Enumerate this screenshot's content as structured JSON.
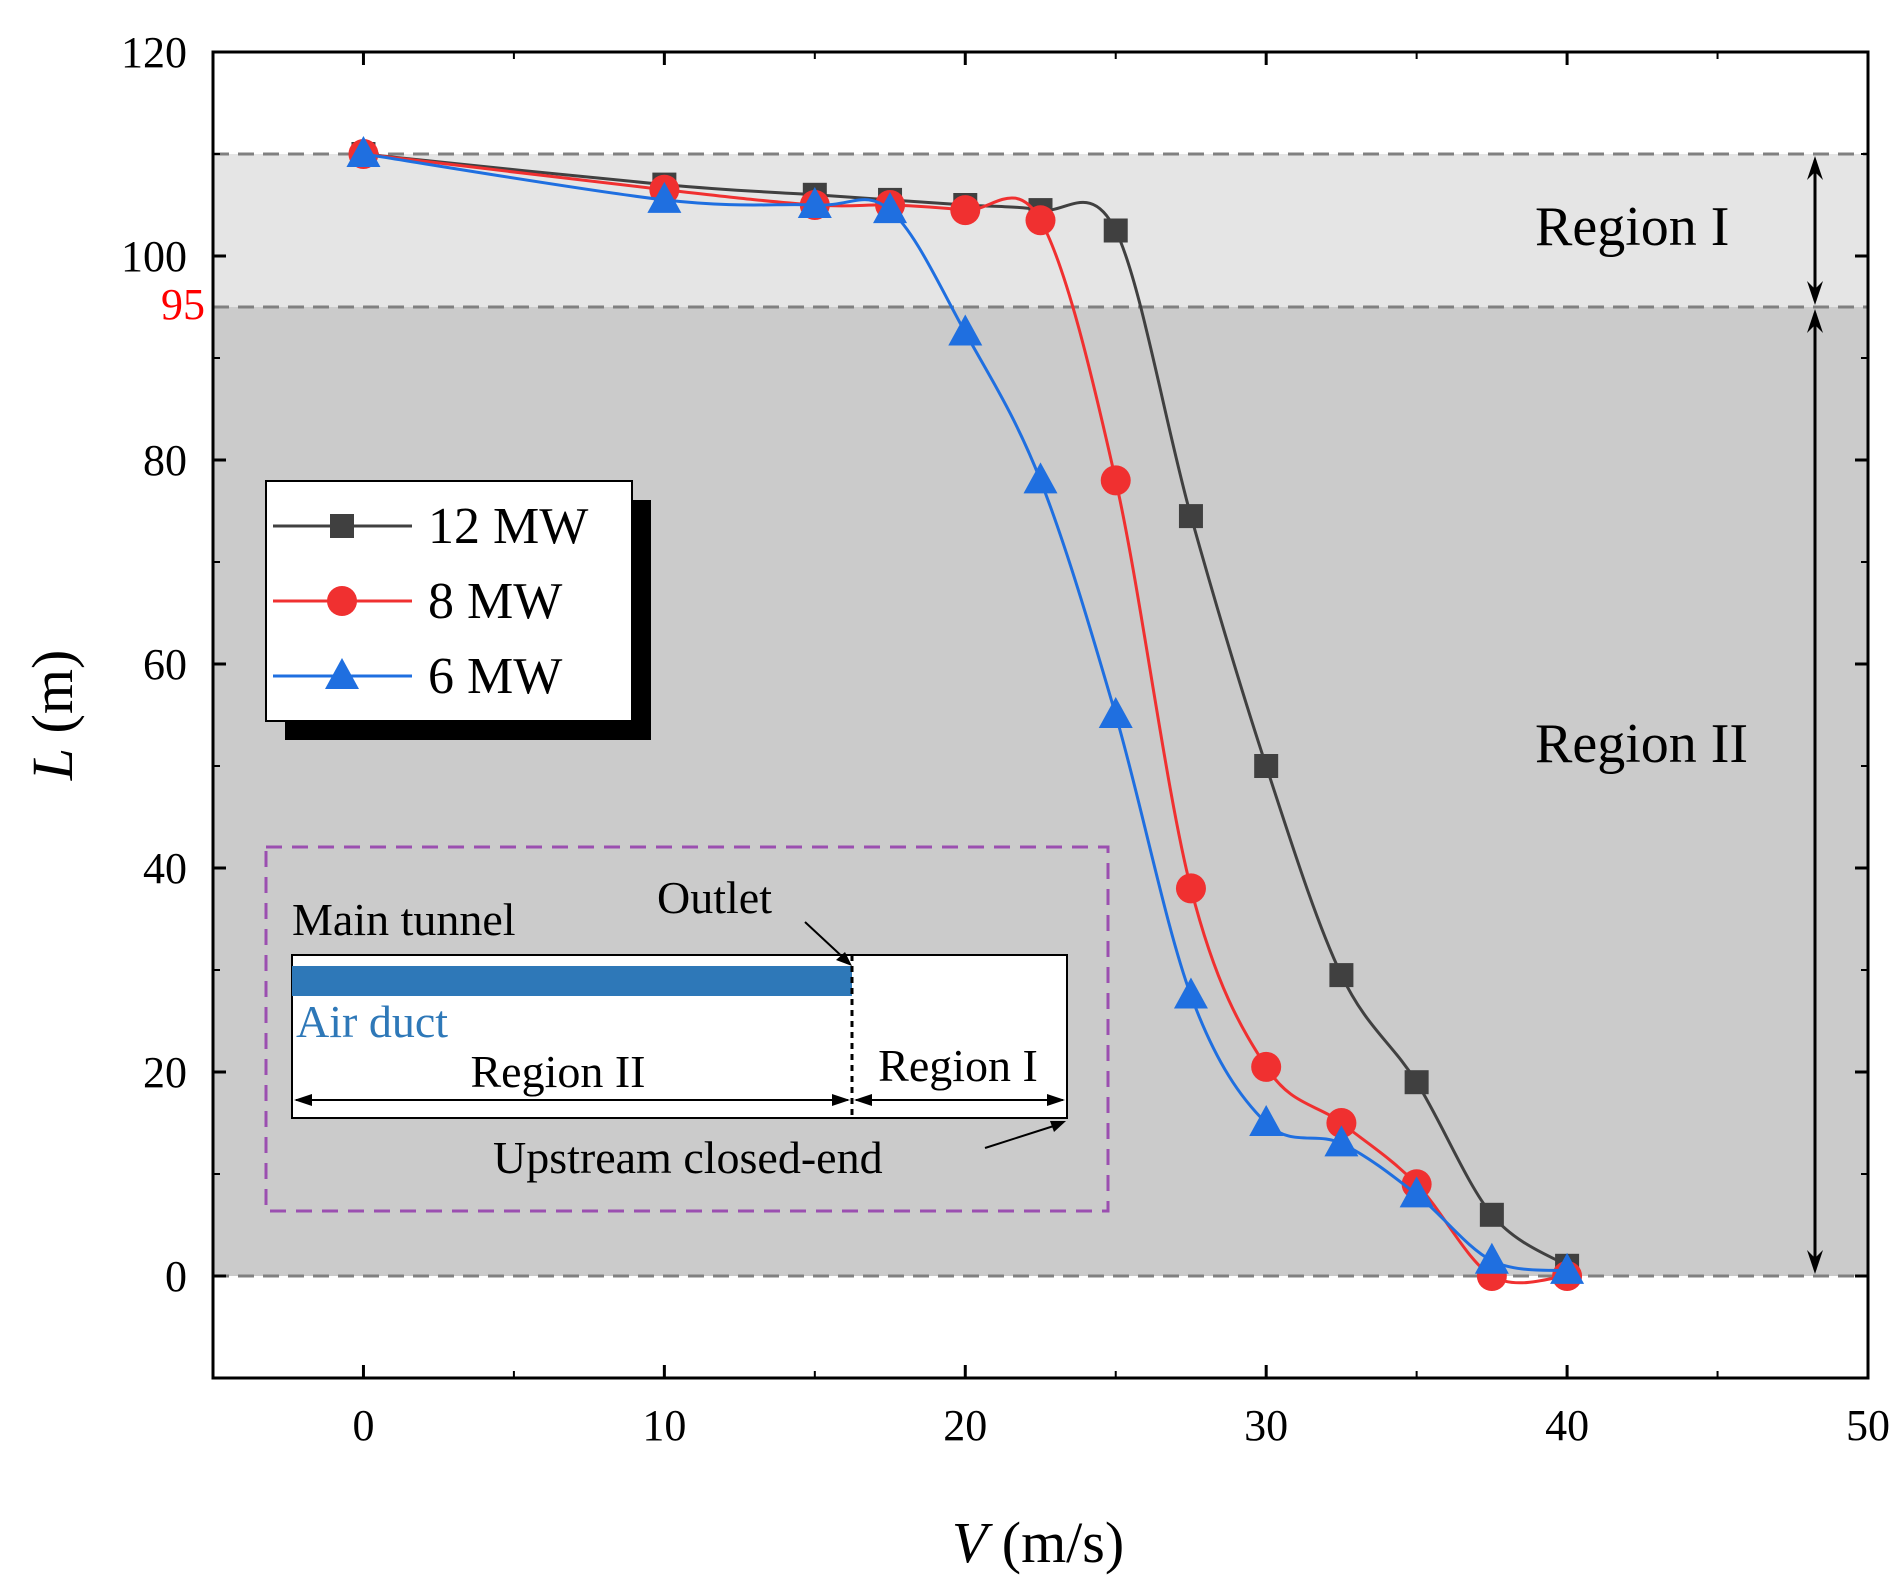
{
  "chart_data": {
    "type": "line",
    "xlabel_var": "V",
    "xlabel_unit": " (m/s)",
    "ylabel_var": "L",
    "ylabel_unit": " (m)",
    "xlim": [
      -5,
      50
    ],
    "ylim": [
      -10,
      120
    ],
    "xticks": [
      0,
      10,
      20,
      30,
      40,
      50
    ],
    "yticks": [
      0,
      20,
      40,
      60,
      80,
      100,
      120
    ],
    "extra_ytick": {
      "value": 95,
      "label": "95",
      "color": "#ff0000"
    },
    "region_boundaries": [
      110,
      95,
      0
    ],
    "regions": [
      {
        "label": "Region I",
        "y_from": 95,
        "y_to": 110,
        "color": "#e5e5e5"
      },
      {
        "label": "Region II",
        "y_from": 0,
        "y_to": 95,
        "color": "#cbcbcb"
      }
    ],
    "series": [
      {
        "name": "12 MW",
        "color": "#404040",
        "marker": "square",
        "x": [
          0,
          10,
          15,
          17.5,
          20,
          22.5,
          25,
          27.5,
          30,
          32.5,
          35,
          37.5,
          40
        ],
        "y": [
          110,
          107,
          106,
          105.5,
          105,
          104.5,
          102.5,
          74.5,
          50,
          29.5,
          19,
          6,
          1
        ]
      },
      {
        "name": "8 MW",
        "color": "#f03030",
        "marker": "circle",
        "x": [
          0,
          10,
          15,
          17.5,
          20,
          22.5,
          25,
          27.5,
          30,
          32.5,
          35,
          37.5,
          40
        ],
        "y": [
          110,
          106.5,
          105,
          105,
          104.5,
          103.5,
          78,
          38,
          20.5,
          15,
          9,
          0,
          0
        ]
      },
      {
        "name": "6 MW",
        "color": "#1f6fe0",
        "marker": "triangle",
        "x": [
          0,
          10,
          15,
          17.5,
          20,
          22.5,
          25,
          27.5,
          30,
          32.5,
          35,
          37.5,
          40
        ],
        "y": [
          110,
          105.5,
          105,
          104.5,
          92.5,
          78,
          55,
          27.5,
          15,
          13,
          8,
          1.5,
          0.5
        ]
      }
    ]
  },
  "inset": {
    "main_tunnel": "Main tunnel",
    "outlet": "Outlet",
    "air_duct": "Air duct",
    "region_ii": "Region II",
    "region_i": "Region I",
    "upstream": "Upstream closed-end"
  }
}
